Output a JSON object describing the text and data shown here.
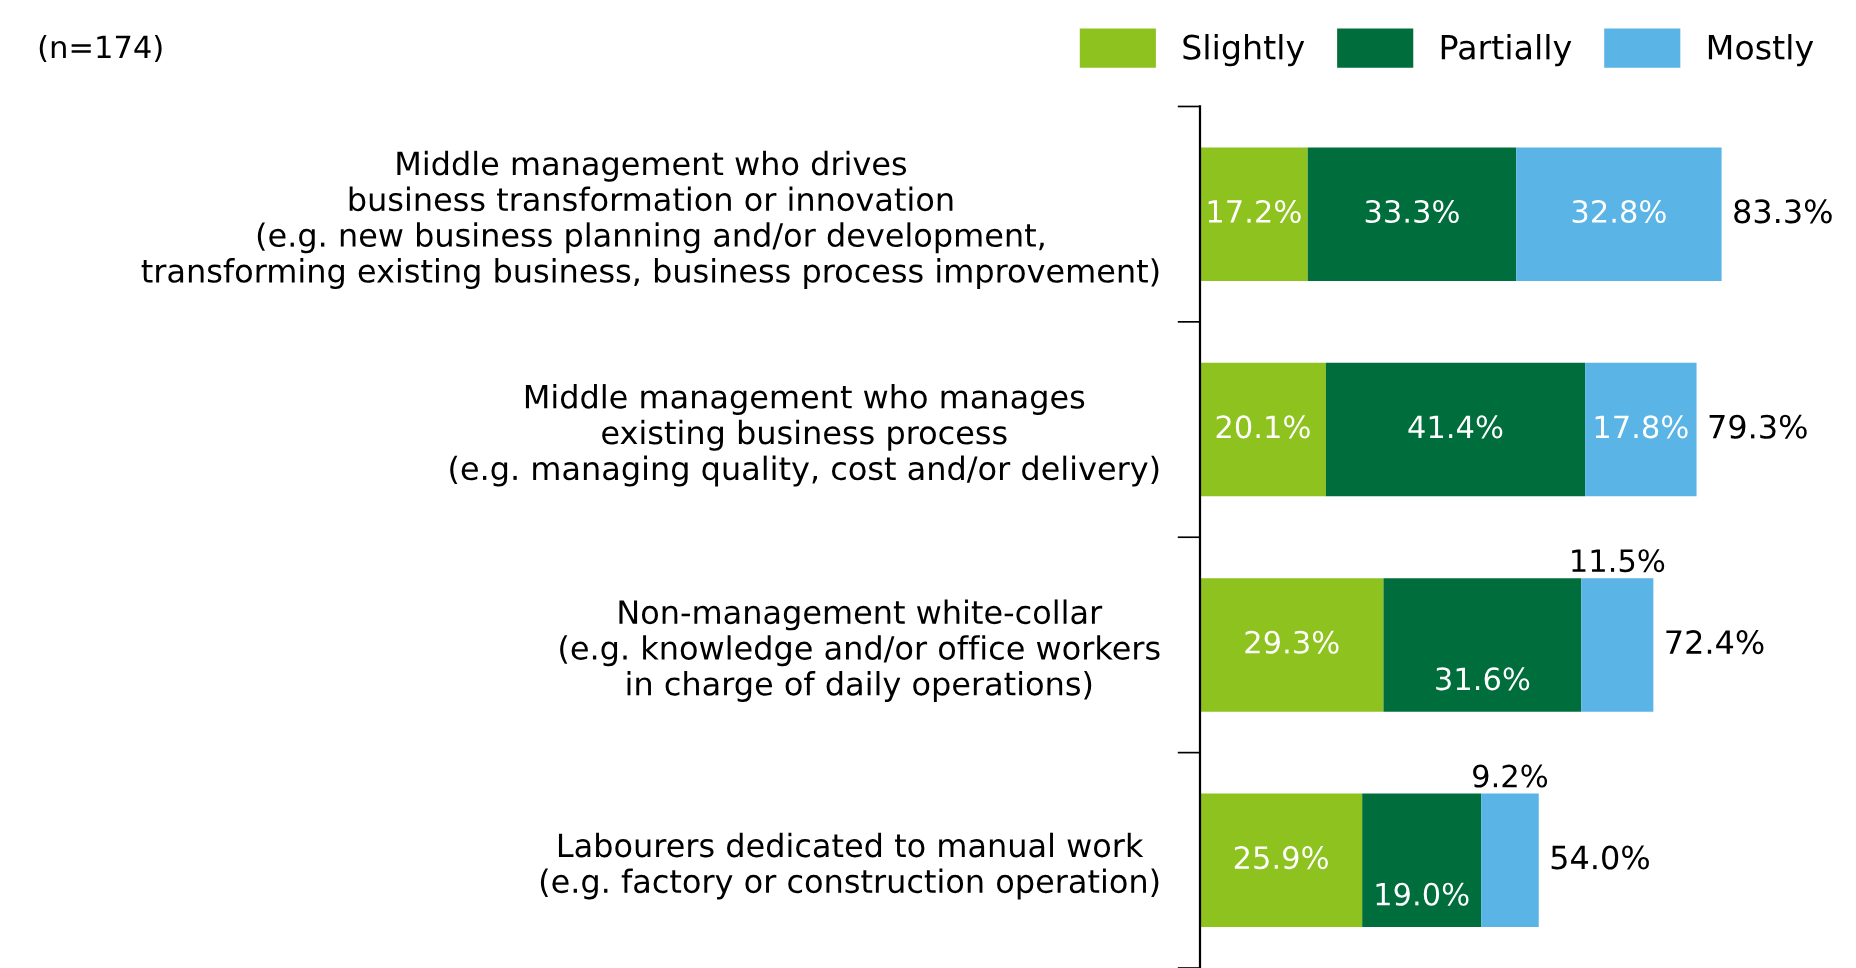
{
  "chart_data": {
    "type": "bar",
    "orientation": "horizontal",
    "stacked": true,
    "legend": "top",
    "grid": false,
    "categories": [
      "Middle management who drives\nbusiness transformation or innovation\n(e.g. new business planning and/or development,\ntransforming existing business, business process improvement)",
      "Middle management who manages\nexisting business process\n(e.g. managing quality, cost and/or delivery)",
      "Non-management white-collar\n(e.g. knowledge and/or office workers\nin charge of daily operations)",
      "Labourers dedicated to manual work\n(e.g. factory or construction operation)"
    ],
    "series": [
      {
        "name": "Slightly",
        "color": "#8dc21f",
        "values": [
          17.2,
          20.1,
          29.3,
          25.9
        ],
        "value_labels": [
          "17.2%",
          "20.1%",
          "29.3%",
          "25.9%"
        ]
      },
      {
        "name": "Partially",
        "color": "#006e3c",
        "values": [
          33.3,
          41.4,
          31.6,
          19.0
        ],
        "value_labels": [
          "33.3%",
          "41.4%",
          "31.6%",
          "19.0%"
        ]
      },
      {
        "name": "Mostly",
        "color": "#5ab4e5",
        "values": [
          32.8,
          17.8,
          11.5,
          9.2
        ],
        "value_labels": [
          "32.8%",
          "17.8%",
          "11.5%",
          "9.2%"
        ]
      }
    ],
    "totals": [
      "83.3%",
      "79.3%",
      "72.4%",
      "54.0%"
    ],
    "annotations": [
      "(n=174)"
    ]
  }
}
